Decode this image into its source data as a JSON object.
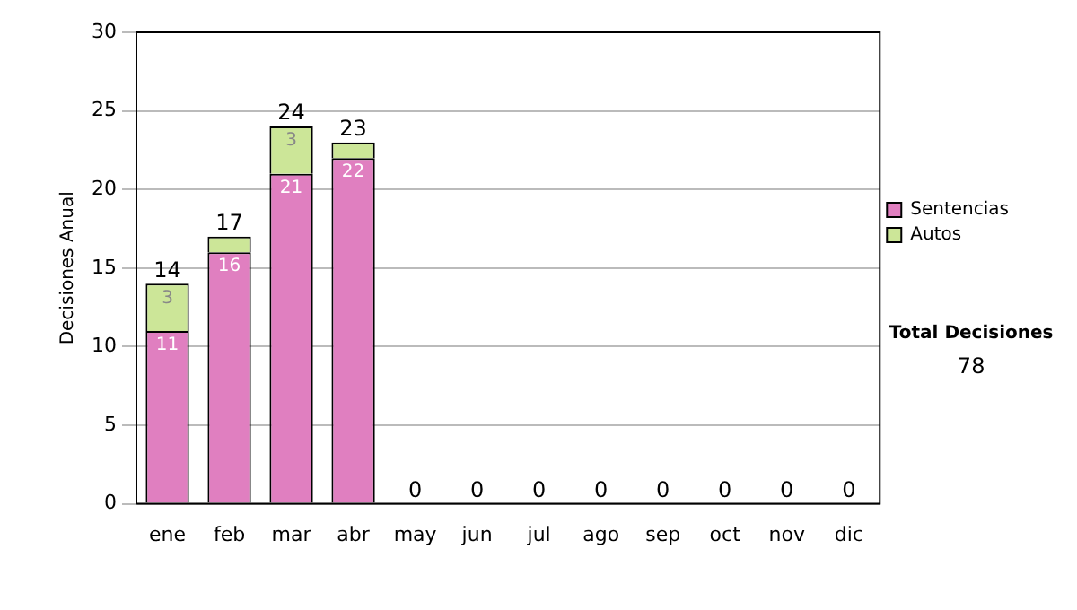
{
  "chart_data": {
    "type": "bar",
    "stacked": true,
    "ylabel": "Decisiones Anual",
    "categories": [
      "ene",
      "feb",
      "mar",
      "abr",
      "may",
      "jun",
      "jul",
      "ago",
      "sep",
      "oct",
      "nov",
      "dic"
    ],
    "series": [
      {
        "name": "Sentencias",
        "color": "#e07fc0",
        "values": [
          11,
          16,
          21,
          22,
          0,
          0,
          0,
          0,
          0,
          0,
          0,
          0
        ],
        "value_labels": [
          "11",
          "16",
          "21",
          "22",
          null,
          null,
          null,
          null,
          null,
          null,
          null,
          null
        ]
      },
      {
        "name": "Autos",
        "color": "#cce698",
        "values": [
          3,
          1,
          3,
          1,
          0,
          0,
          0,
          0,
          0,
          0,
          0,
          0
        ],
        "value_labels": [
          "3",
          null,
          "3",
          null,
          null,
          null,
          null,
          null,
          null,
          null,
          null,
          null
        ]
      }
    ],
    "totals": [
      "14",
      "17",
      "24",
      "23",
      "0",
      "0",
      "0",
      "0",
      "0",
      "0",
      "0",
      "0"
    ],
    "ylim": [
      0,
      30
    ],
    "yticks": [
      0,
      5,
      10,
      15,
      20,
      25,
      30
    ],
    "grid": "y",
    "legend": "right",
    "annotations": [
      "Total Decisiones",
      "78"
    ]
  }
}
